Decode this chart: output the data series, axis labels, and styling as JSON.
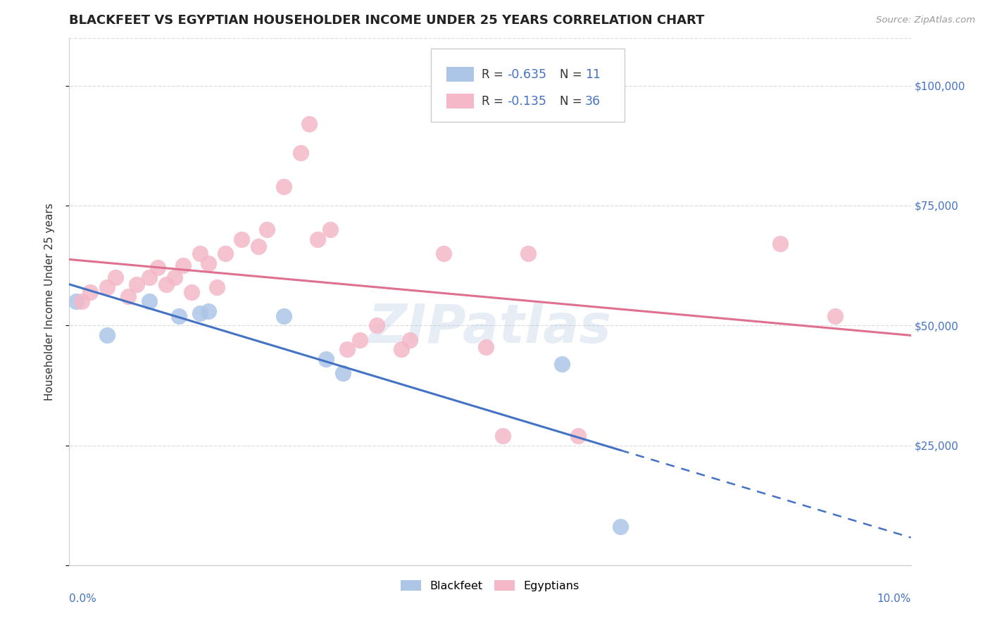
{
  "title": "BLACKFEET VS EGYPTIAN HOUSEHOLDER INCOME UNDER 25 YEARS CORRELATION CHART",
  "source": "Source: ZipAtlas.com",
  "ylabel": "Householder Income Under 25 years",
  "watermark": "ZIPatlas",
  "xlim": [
    0.0,
    10.0
  ],
  "ylim": [
    0,
    110000
  ],
  "yticks": [
    0,
    25000,
    50000,
    75000,
    100000
  ],
  "ytick_labels": [
    "",
    "$25,000",
    "$50,000",
    "$75,000",
    "$100,000"
  ],
  "blackfeet_R": -0.635,
  "blackfeet_N": 11,
  "egyptian_R": -0.135,
  "egyptian_N": 36,
  "blackfeet_color": "#adc6e8",
  "blackfeet_line_color": "#4472c4",
  "egyptian_color": "#f4b8c8",
  "egyptian_line_color": "#e07090",
  "blackfeet_x": [
    0.08,
    0.45,
    0.95,
    1.3,
    1.55,
    1.65,
    2.55,
    3.05,
    3.25,
    5.85,
    6.55
  ],
  "blackfeet_y": [
    55000,
    48000,
    55000,
    52000,
    52500,
    53000,
    52000,
    43000,
    40000,
    42000,
    8000
  ],
  "egyptian_x": [
    0.15,
    0.25,
    0.45,
    0.55,
    0.7,
    0.8,
    0.95,
    1.05,
    1.15,
    1.25,
    1.35,
    1.45,
    1.55,
    1.65,
    1.75,
    1.85,
    2.05,
    2.25,
    2.35,
    2.55,
    2.75,
    2.85,
    2.95,
    3.1,
    3.3,
    3.45,
    3.65,
    3.95,
    4.05,
    4.45,
    4.95,
    5.15,
    5.45,
    6.05,
    8.45,
    9.1
  ],
  "egyptian_y": [
    55000,
    57000,
    58000,
    60000,
    56000,
    58500,
    60000,
    62000,
    58500,
    60000,
    62500,
    57000,
    65000,
    63000,
    58000,
    65000,
    68000,
    66500,
    70000,
    79000,
    86000,
    92000,
    68000,
    70000,
    45000,
    47000,
    50000,
    45000,
    47000,
    65000,
    45500,
    27000,
    65000,
    27000,
    67000,
    52000
  ],
  "background_color": "#ffffff",
  "grid_color": "#dddddd",
  "tick_color": "#4472c4",
  "title_fontsize": 12,
  "axis_label_fontsize": 10,
  "tick_fontsize": 10
}
